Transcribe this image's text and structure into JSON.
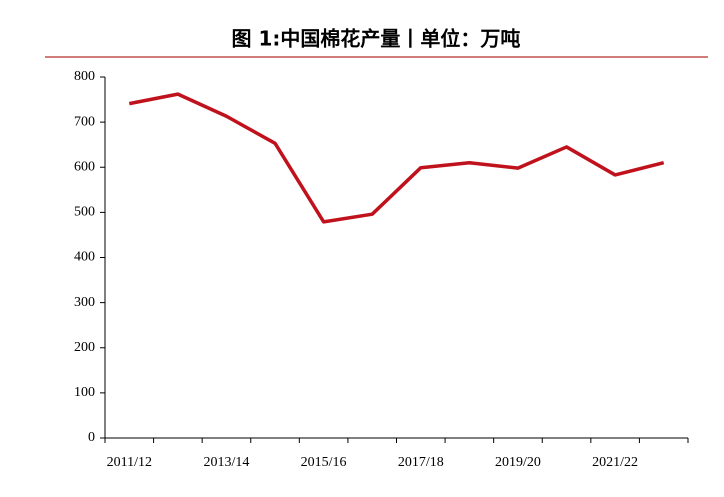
{
  "chart_data": {
    "type": "line",
    "title": "图 1:中国棉花产量丨单位：万吨",
    "categories": [
      "2011/12",
      null,
      "2013/14",
      null,
      "2015/16",
      null,
      "2017/18",
      null,
      "2019/20",
      null,
      "2021/22",
      null
    ],
    "series": [
      {
        "color": "#c0121c",
        "values": [
          741,
          762,
          713,
          653,
          479,
          496,
          599,
          610,
          598,
          645,
          583,
          610
        ]
      }
    ],
    "ylim": [
      0,
      800
    ],
    "yticks": [
      0,
      100,
      200,
      300,
      400,
      500,
      600,
      700,
      800
    ]
  }
}
